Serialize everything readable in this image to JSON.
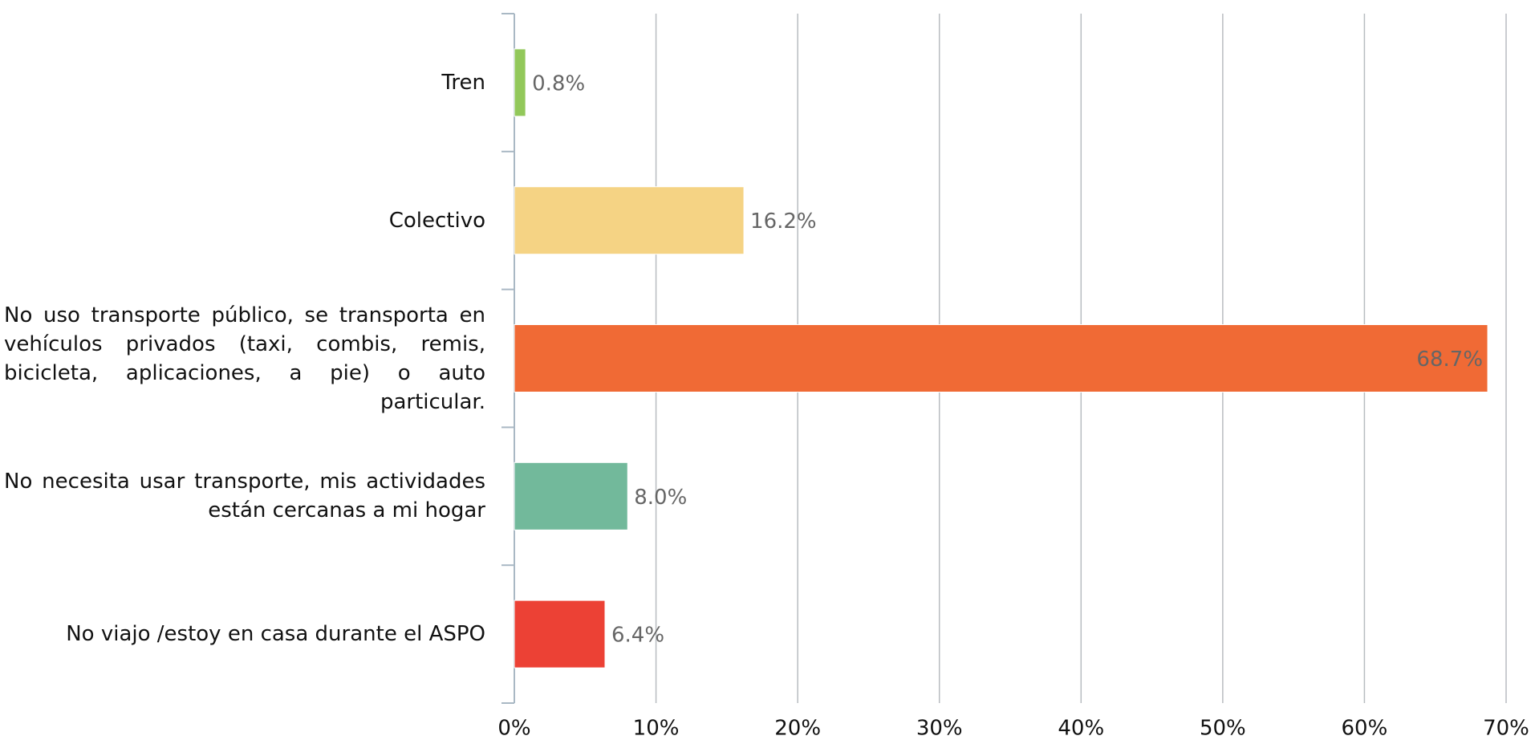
{
  "chart_data": {
    "type": "barh",
    "categories": [
      "Tren",
      "Colectivo",
      "No uso transporte público, se transporta en vehículos privados (taxi, combis, remis, bicicleta, aplicaciones, a pie) o auto particular.",
      "No necesita usar transporte, mis actividades están cercanas a mi hogar",
      "No viajo /estoy en casa durante el ASPO"
    ],
    "values": [
      0.8,
      16.2,
      68.7,
      8.0,
      6.4
    ],
    "value_labels": [
      "0.8%",
      "16.2%",
      "68.7%",
      "8.0%",
      "6.4%"
    ],
    "colors": [
      "#92c85a",
      "#f5d384",
      "#f06a35",
      "#72b99b",
      "#ec4135"
    ],
    "xlim": [
      0,
      70
    ],
    "xticks": [
      {
        "value": 0,
        "label": "0%"
      },
      {
        "value": 10,
        "label": "10%"
      },
      {
        "value": 20,
        "label": "20%"
      },
      {
        "value": 30,
        "label": "30%"
      },
      {
        "value": 40,
        "label": "40%"
      },
      {
        "value": 50,
        "label": "50%"
      },
      {
        "value": 60,
        "label": "60%"
      },
      {
        "value": 70,
        "label": "70%"
      }
    ],
    "grid": true
  }
}
